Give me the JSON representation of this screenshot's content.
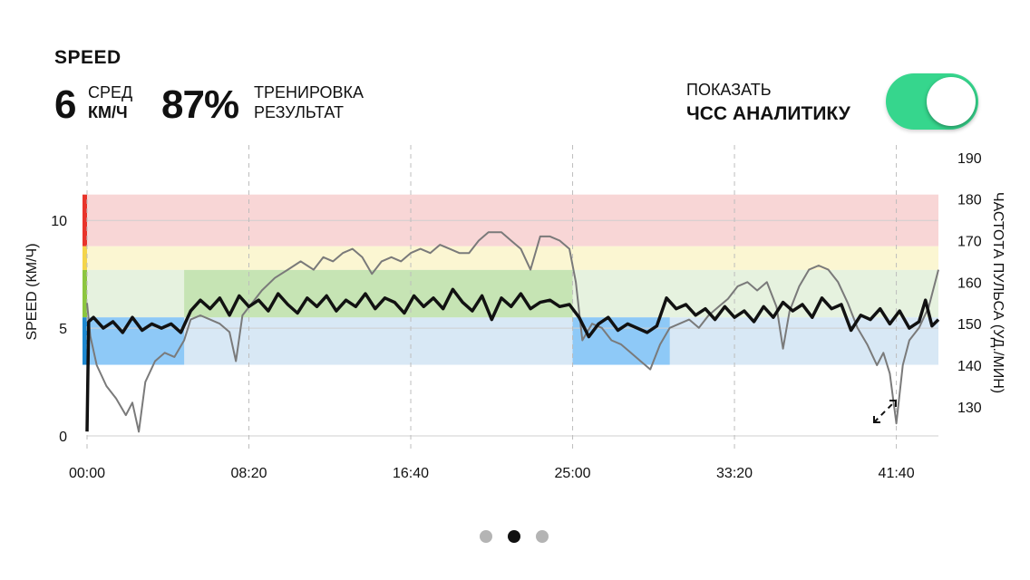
{
  "header": {
    "title": "SPEED",
    "avg_value": "6",
    "avg_label_1": "СРЕД",
    "avg_label_2": "КМ/Ч",
    "score_value": "87%",
    "score_label_1": "ТРЕНИРОВКА",
    "score_label_2": "РЕЗУЛЬТАТ",
    "show_label_1": "ПОКАЗАТЬ",
    "show_label_2": "ЧСС АНАЛИТИКУ",
    "toggle_on": true
  },
  "pagination": {
    "count": 3,
    "active": 1
  },
  "colors": {
    "speed_line": "#111111",
    "hr_line": "#7a7a7a",
    "toggle_on": "#36d68d",
    "zone_red": "#f8d6d6",
    "zone_yellow": "#fbf6d2",
    "zone_green_light": "#e6f2df",
    "zone_green": "#c6e4b4",
    "zone_blue_light": "#d8e8f5",
    "zone_blue": "#8ec9f7",
    "edge_red": "#e8342b",
    "edge_yellow": "#f4d54a",
    "edge_green": "#8cc63f",
    "edge_blue": "#1e88d0"
  },
  "chart_data": {
    "type": "line",
    "xlabel": "",
    "ylabel": "SPEED (КМ/Ч)",
    "y2label": "ЧАСТОТА ПУЛЬСА (УД./МИН)",
    "x_tick_labels": [
      "00:00",
      "08:20",
      "16:40",
      "25:00",
      "33:20",
      "41:40"
    ],
    "x_tick_seconds": [
      0,
      500,
      1000,
      1500,
      2000,
      2500
    ],
    "x_range_seconds": [
      0,
      2630
    ],
    "y_ticks": [
      0,
      5,
      10
    ],
    "ylim": [
      0,
      13.5
    ],
    "y2_ticks": [
      130,
      140,
      150,
      160,
      170,
      180,
      190
    ],
    "y2lim": [
      123,
      193
    ],
    "grid": "vertical dashed",
    "zones_kmh": [
      {
        "name": "red",
        "from": 8.8,
        "to": 11.2
      },
      {
        "name": "yellow",
        "from": 7.7,
        "to": 8.8
      },
      {
        "name": "green",
        "from": 5.5,
        "to": 7.7
      },
      {
        "name": "blue",
        "from": 3.3,
        "to": 5.5
      }
    ],
    "highlight_segments": [
      {
        "zone": "blue",
        "from_s": 0,
        "to_s": 300
      },
      {
        "zone": "green",
        "from_s": 300,
        "to_s": 1500
      },
      {
        "zone": "blue",
        "from_s": 1500,
        "to_s": 1800
      }
    ],
    "series": [
      {
        "values": [
          [
            0,
            0.2
          ],
          [
            5,
            5.3
          ],
          [
            20,
            5.5
          ],
          [
            50,
            5.0
          ],
          [
            80,
            5.3
          ],
          [
            110,
            4.8
          ],
          [
            140,
            5.5
          ],
          [
            170,
            4.9
          ],
          [
            200,
            5.2
          ],
          [
            230,
            5.0
          ],
          [
            260,
            5.2
          ],
          [
            290,
            4.8
          ],
          [
            320,
            5.8
          ],
          [
            350,
            6.3
          ],
          [
            380,
            5.9
          ],
          [
            410,
            6.4
          ],
          [
            440,
            5.6
          ],
          [
            470,
            6.5
          ],
          [
            500,
            6.0
          ],
          [
            530,
            6.3
          ],
          [
            560,
            5.8
          ],
          [
            590,
            6.6
          ],
          [
            620,
            6.1
          ],
          [
            650,
            5.7
          ],
          [
            680,
            6.4
          ],
          [
            710,
            6.0
          ],
          [
            740,
            6.5
          ],
          [
            770,
            5.8
          ],
          [
            800,
            6.3
          ],
          [
            830,
            6.0
          ],
          [
            860,
            6.6
          ],
          [
            890,
            5.9
          ],
          [
            920,
            6.4
          ],
          [
            950,
            6.2
          ],
          [
            980,
            5.7
          ],
          [
            1010,
            6.5
          ],
          [
            1040,
            6.0
          ],
          [
            1070,
            6.4
          ],
          [
            1100,
            5.9
          ],
          [
            1130,
            6.8
          ],
          [
            1160,
            6.2
          ],
          [
            1190,
            5.8
          ],
          [
            1220,
            6.5
          ],
          [
            1250,
            5.4
          ],
          [
            1280,
            6.4
          ],
          [
            1310,
            6.0
          ],
          [
            1340,
            6.6
          ],
          [
            1370,
            5.9
          ],
          [
            1400,
            6.2
          ],
          [
            1430,
            6.3
          ],
          [
            1460,
            6.0
          ],
          [
            1490,
            6.1
          ],
          [
            1520,
            5.5
          ],
          [
            1550,
            4.6
          ],
          [
            1580,
            5.2
          ],
          [
            1610,
            5.5
          ],
          [
            1640,
            4.9
          ],
          [
            1670,
            5.2
          ],
          [
            1700,
            5.0
          ],
          [
            1730,
            4.8
          ],
          [
            1760,
            5.1
          ],
          [
            1790,
            6.4
          ],
          [
            1820,
            5.9
          ],
          [
            1850,
            6.1
          ],
          [
            1880,
            5.6
          ],
          [
            1910,
            5.9
          ],
          [
            1940,
            5.4
          ],
          [
            1970,
            6.0
          ],
          [
            2000,
            5.5
          ],
          [
            2030,
            5.8
          ],
          [
            2060,
            5.3
          ],
          [
            2090,
            6.0
          ],
          [
            2120,
            5.5
          ],
          [
            2150,
            6.2
          ],
          [
            2180,
            5.8
          ],
          [
            2210,
            6.1
          ],
          [
            2240,
            5.5
          ],
          [
            2270,
            6.4
          ],
          [
            2300,
            5.9
          ],
          [
            2330,
            6.1
          ],
          [
            2360,
            4.9
          ],
          [
            2390,
            5.6
          ],
          [
            2420,
            5.4
          ],
          [
            2450,
            5.9
          ],
          [
            2480,
            5.2
          ],
          [
            2510,
            5.8
          ],
          [
            2540,
            5.0
          ],
          [
            2570,
            5.3
          ],
          [
            2590,
            6.3
          ],
          [
            2610,
            5.1
          ],
          [
            2630,
            5.4
          ]
        ]
      },
      {
        "values": [
          [
            0,
            155
          ],
          [
            10,
            147
          ],
          [
            30,
            140
          ],
          [
            60,
            135
          ],
          [
            90,
            132
          ],
          [
            120,
            128
          ],
          [
            140,
            131
          ],
          [
            160,
            124
          ],
          [
            180,
            136
          ],
          [
            210,
            141
          ],
          [
            240,
            143
          ],
          [
            270,
            142
          ],
          [
            300,
            146
          ],
          [
            320,
            151
          ],
          [
            350,
            152
          ],
          [
            380,
            151
          ],
          [
            410,
            150
          ],
          [
            440,
            148
          ],
          [
            460,
            141
          ],
          [
            480,
            152
          ],
          [
            510,
            155
          ],
          [
            540,
            158
          ],
          [
            580,
            161
          ],
          [
            620,
            163
          ],
          [
            660,
            165
          ],
          [
            700,
            163
          ],
          [
            730,
            166
          ],
          [
            760,
            165
          ],
          [
            790,
            167
          ],
          [
            820,
            168
          ],
          [
            850,
            166
          ],
          [
            880,
            162
          ],
          [
            910,
            165
          ],
          [
            940,
            166
          ],
          [
            970,
            165
          ],
          [
            1000,
            167
          ],
          [
            1030,
            168
          ],
          [
            1060,
            167
          ],
          [
            1090,
            169
          ],
          [
            1120,
            168
          ],
          [
            1150,
            167
          ],
          [
            1180,
            167
          ],
          [
            1210,
            170
          ],
          [
            1240,
            172
          ],
          [
            1280,
            172
          ],
          [
            1310,
            170
          ],
          [
            1340,
            168
          ],
          [
            1370,
            163
          ],
          [
            1400,
            171
          ],
          [
            1430,
            171
          ],
          [
            1460,
            170
          ],
          [
            1490,
            168
          ],
          [
            1510,
            160
          ],
          [
            1530,
            146
          ],
          [
            1560,
            150
          ],
          [
            1590,
            149
          ],
          [
            1620,
            146
          ],
          [
            1650,
            145
          ],
          [
            1680,
            143
          ],
          [
            1710,
            141
          ],
          [
            1740,
            139
          ],
          [
            1770,
            145
          ],
          [
            1800,
            149
          ],
          [
            1830,
            150
          ],
          [
            1860,
            151
          ],
          [
            1890,
            149
          ],
          [
            1920,
            152
          ],
          [
            1950,
            154
          ],
          [
            1980,
            156
          ],
          [
            2010,
            159
          ],
          [
            2040,
            160
          ],
          [
            2070,
            158
          ],
          [
            2100,
            160
          ],
          [
            2130,
            154
          ],
          [
            2150,
            144
          ],
          [
            2170,
            153
          ],
          [
            2200,
            159
          ],
          [
            2230,
            163
          ],
          [
            2260,
            164
          ],
          [
            2290,
            163
          ],
          [
            2320,
            160
          ],
          [
            2350,
            155
          ],
          [
            2380,
            149
          ],
          [
            2410,
            145
          ],
          [
            2440,
            140
          ],
          [
            2460,
            143
          ],
          [
            2480,
            138
          ],
          [
            2500,
            126
          ],
          [
            2520,
            140
          ],
          [
            2540,
            146
          ],
          [
            2570,
            149
          ],
          [
            2600,
            154
          ],
          [
            2630,
            163
          ]
        ]
      }
    ]
  }
}
